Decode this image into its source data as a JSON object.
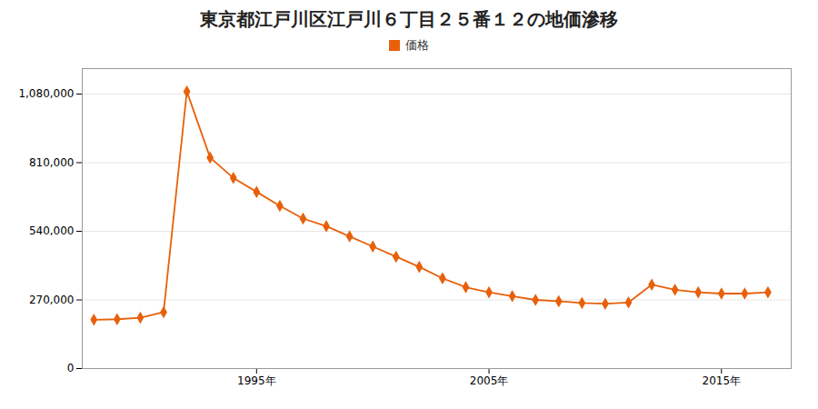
{
  "chart_data": {
    "type": "line",
    "title": "東京都江戸川区江戸川６丁目２５番１２の地価滲移",
    "x": [
      1988,
      1989,
      1990,
      1991,
      1992,
      1993,
      1994,
      1995,
      1996,
      1997,
      1998,
      1999,
      2000,
      2001,
      2002,
      2003,
      2004,
      2005,
      2006,
      2007,
      2008,
      2009,
      2010,
      2011,
      2012,
      2013,
      2014,
      2015,
      2016,
      2017
    ],
    "series": [
      {
        "name": "価格",
        "color": "#E8600A",
        "marker": "diamond",
        "values": [
          192000,
          194000,
          200000,
          222000,
          1090000,
          830000,
          750000,
          695000,
          640000,
          590000,
          560000,
          520000,
          480000,
          440000,
          400000,
          355000,
          320000,
          300000,
          285000,
          270000,
          265000,
          258000,
          255000,
          260000,
          330000,
          310000,
          300000,
          295000,
          295000,
          300000
        ]
      }
    ],
    "xlim": [
      1987.5,
      2018
    ],
    "xticks": [
      {
        "value": 1995,
        "label": "1995年"
      },
      {
        "value": 2005,
        "label": "2005年"
      },
      {
        "value": 2015,
        "label": "2015年"
      }
    ],
    "ylim": [
      0,
      1180000
    ],
    "yticks": [
      0,
      {
        "value": 270000,
        "label": "270,000"
      },
      {
        "value": 540000,
        "label": "540,000"
      },
      {
        "value": 810000,
        "label": "810,000"
      },
      {
        "value": 1080000,
        "label": "1,080,000"
      }
    ],
    "grid": true,
    "legend": "top"
  }
}
